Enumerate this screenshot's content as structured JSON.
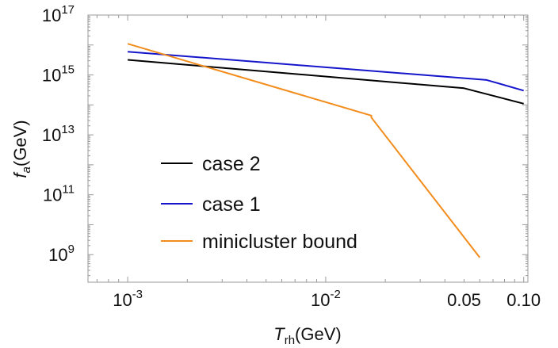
{
  "chart_data": {
    "type": "line",
    "title": "",
    "xlabel": {
      "main": "T",
      "sub": "rh",
      "unit": "(GeV)"
    },
    "ylabel": {
      "main": "f",
      "sub": "a",
      "unit": "(GeV)"
    },
    "xscale": "log",
    "yscale": "log",
    "xlim": [
      0.00063,
      0.105
    ],
    "ylim": [
      120000000.0,
      1e+17
    ],
    "x_ticks": [
      {
        "value": 0.001,
        "base": "10",
        "exp": "-3"
      },
      {
        "value": 0.01,
        "base": "10",
        "exp": "-2"
      },
      {
        "value": 0.05,
        "text": "0.05"
      },
      {
        "value": 0.1,
        "text": "0.10"
      }
    ],
    "y_ticks": [
      {
        "value": 1000000000.0,
        "base": "10",
        "exp": "9"
      },
      {
        "value": 100000000000.0,
        "base": "10",
        "exp": "11"
      },
      {
        "value": 10000000000000.0,
        "base": "10",
        "exp": "13"
      },
      {
        "value": 1000000000000000.0,
        "base": "10",
        "exp": "15"
      },
      {
        "value": 1e+17,
        "base": "10",
        "exp": "17"
      }
    ],
    "grid": false,
    "legend_position": "center-left",
    "series": [
      {
        "name": "case 2",
        "color": "#000000",
        "x": [
          0.001,
          0.05,
          0.1
        ],
        "y": [
          3200000000000000.0,
          360000000000000.0,
          110000000000000.0
        ]
      },
      {
        "name": "case 1",
        "color": "#1515cc",
        "x": [
          0.001,
          0.065,
          0.1
        ],
        "y": [
          6000000000000000.0,
          680000000000000.0,
          300000000000000.0
        ]
      },
      {
        "name": "minicluster bound",
        "color": "#f28c1c",
        "x": [
          0.001,
          0.017,
          0.017,
          0.06
        ],
        "y": [
          1.1e+16,
          44000000000000.0,
          38000000000000.0,
          800000000.0
        ]
      }
    ]
  }
}
